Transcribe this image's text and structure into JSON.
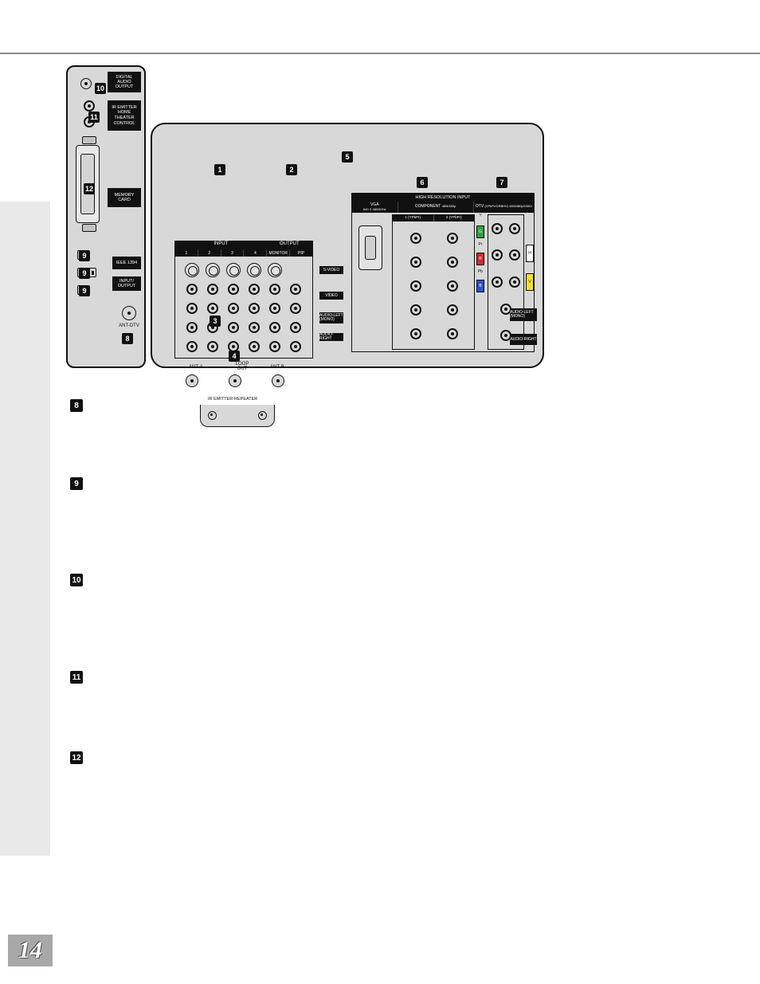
{
  "page_number": "14",
  "diagram": {
    "small_panel": {
      "digital_audio_output": "DIGITAL AUDIO OUTPUT",
      "ir_emitter": "IR EMITTER HOME THEATER CONTROL",
      "memory_card": "MEMORY CARD",
      "ieee1394": "IEEE 1394",
      "input_output": "INPUT/ OUTPUT",
      "ant_dtv": "ANT-DTV"
    },
    "input_block": {
      "header_left": "INPUT",
      "header_right": "OUTPUT",
      "cols": [
        "1",
        "2",
        "3",
        "4",
        "MONITOR",
        "PIP"
      ],
      "row_labels": [
        "S-VIDEO",
        "VIDEO",
        "AUDIO-LEFT (MONO)",
        "AUDIO-RIGHT"
      ]
    },
    "coax": {
      "ant_a": "ANT-A",
      "loop_out": "LOOP OUT",
      "ant_b": "ANT-B"
    },
    "repeater": "IR EMITTER-REPEATER",
    "hires": {
      "title": "HIGH RESOLUTION INPUT",
      "vga": "VGA",
      "vga_sub": "640 X 480/60Hz",
      "component": "COMPONENT",
      "component_sub": "480i/480p",
      "comp1": "1 (YPbPr)",
      "comp2": "2 (YPbPr)",
      "dtv": "DTV",
      "dtv_sub": "(YPbPr/GRBHV) 480i/480p/1080i",
      "pills": {
        "y": "Y",
        "g": "G",
        "pr": "Pr",
        "r": "R",
        "pb": "Pb",
        "b": "B",
        "h": "H",
        "v": "V"
      },
      "audio_left": "AUDIO-LEFT (MONO)",
      "audio_right": "AUDIO-RIGHT"
    },
    "pill_colors": {
      "g": "#2aa33c",
      "r": "#d12a2a",
      "b": "#2a4fd1",
      "h": "#ffffff",
      "v": "#f4e02a"
    },
    "callouts": {
      "1": "1",
      "2": "2",
      "3": "3",
      "4": "4",
      "5": "5",
      "6": "6",
      "7": "7",
      "8": "8",
      "9": "9",
      "10": "10",
      "11": "11",
      "12": "12"
    }
  },
  "list_badges": [
    "8",
    "9",
    "10",
    "11",
    "12"
  ],
  "colors": {
    "panel_bg": "#d8d8d8",
    "black": "#111111",
    "shade": "#e9e9e9",
    "page_gray": "#a8a8a8"
  }
}
